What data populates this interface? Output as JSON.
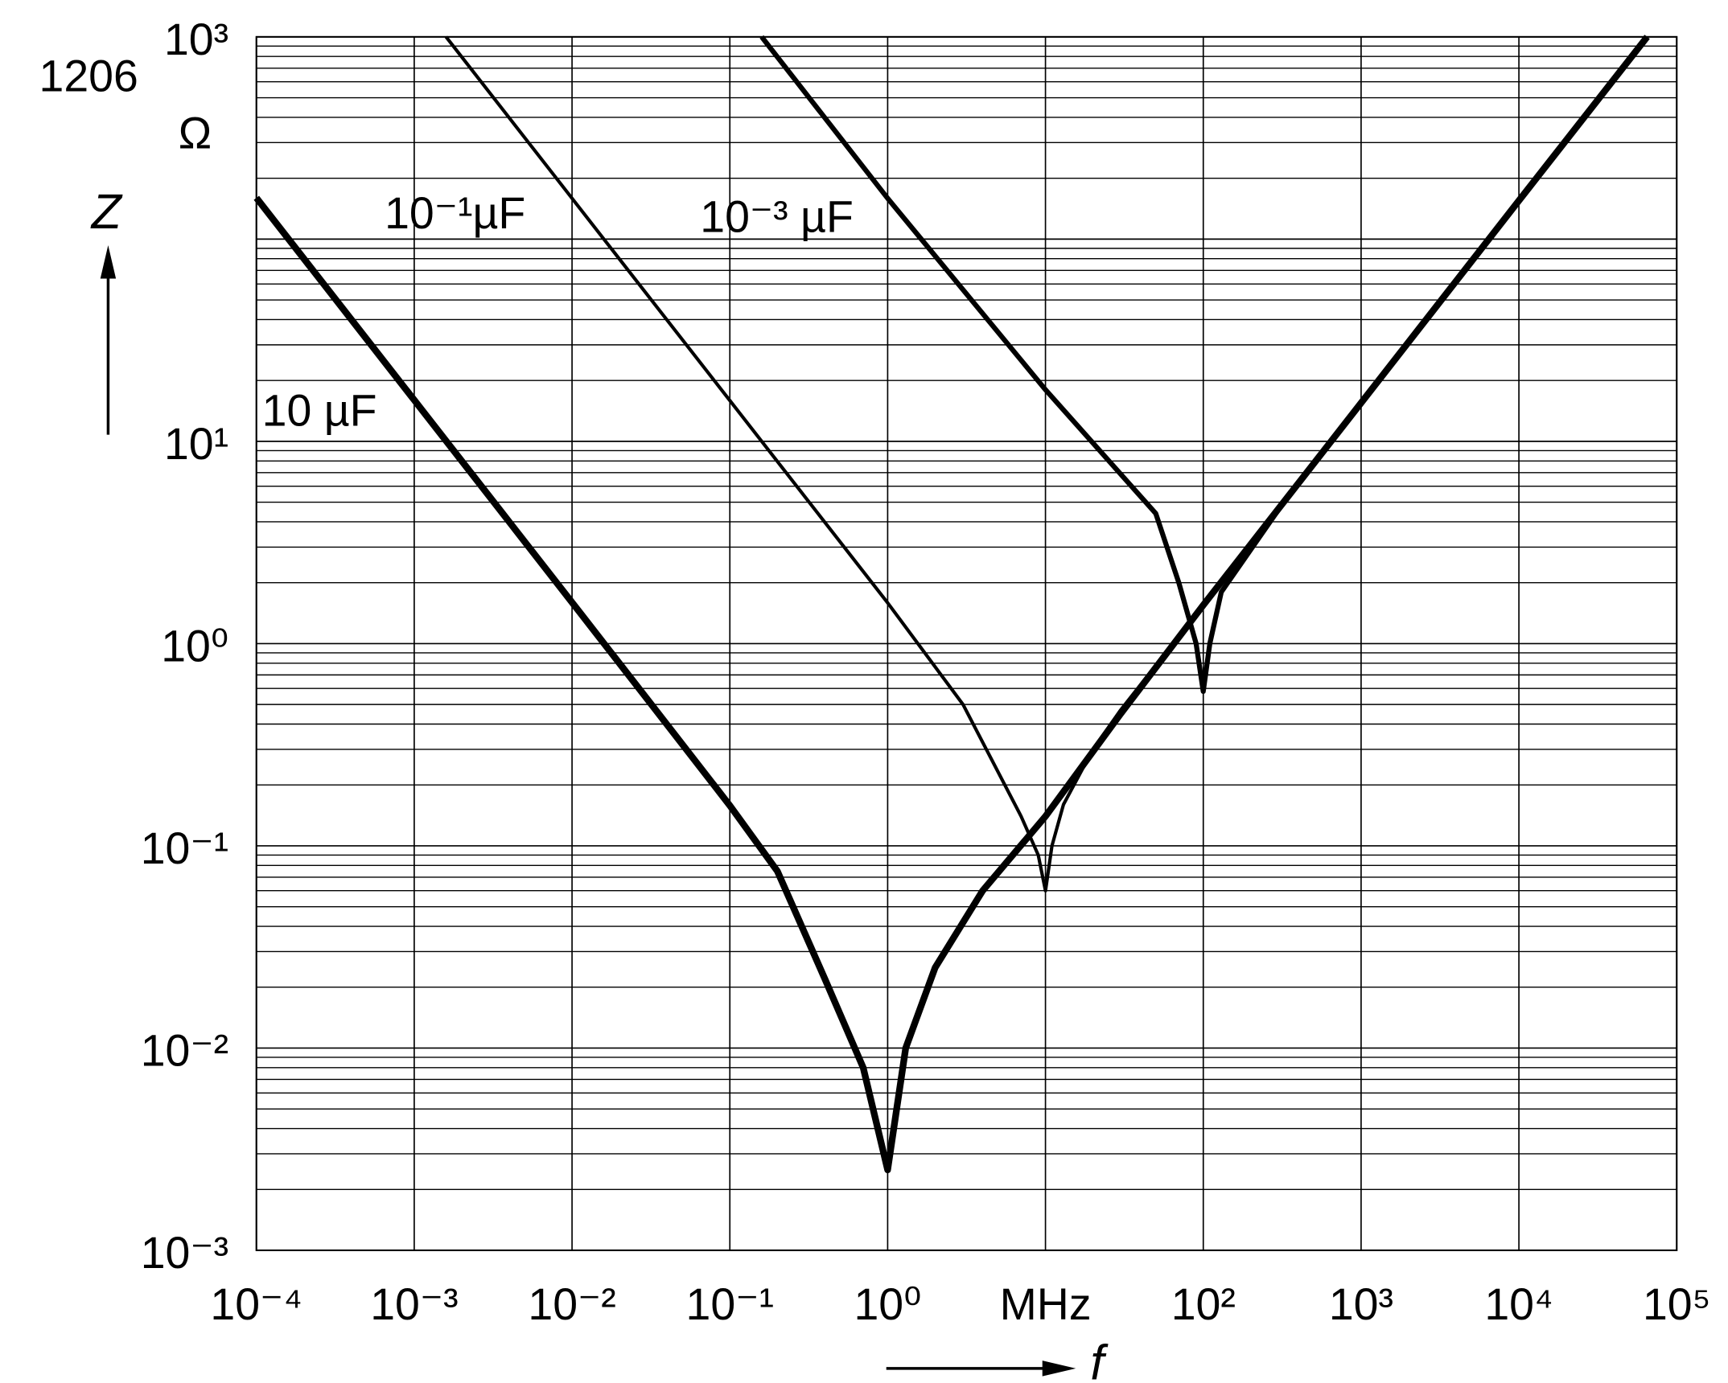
{
  "chart_data": {
    "type": "line",
    "title": "1206",
    "y_unit": "Ω",
    "y_label": "Z",
    "x_label": "f",
    "log_x": true,
    "log_y": true,
    "grid": true,
    "minor_grid_y": true,
    "xlim": [
      0.0001,
      100000
    ],
    "ylim": [
      0.001,
      1000
    ],
    "xticks": [
      {
        "value": 0.0001,
        "label": "10⁻⁴"
      },
      {
        "value": 0.001,
        "label": "10⁻³"
      },
      {
        "value": 0.01,
        "label": "10⁻²"
      },
      {
        "value": 0.1,
        "label": "10⁻¹"
      },
      {
        "value": 1,
        "label": "10⁰"
      },
      {
        "value": 10,
        "label": "MHz"
      },
      {
        "value": 100,
        "label": "10²"
      },
      {
        "value": 1000,
        "label": "10³"
      },
      {
        "value": 10000,
        "label": "10⁴"
      },
      {
        "value": 100000,
        "label": "10⁵"
      }
    ],
    "yticks": [
      {
        "value": 0.001,
        "label": "10⁻³"
      },
      {
        "value": 0.01,
        "label": "10⁻²"
      },
      {
        "value": 0.1,
        "label": "10⁻¹"
      },
      {
        "value": 1,
        "label": "10⁰"
      },
      {
        "value": 10,
        "label": "10¹"
      },
      {
        "value": 100,
        "label": null
      },
      {
        "value": 1000,
        "label": "10³"
      }
    ],
    "series": [
      {
        "name": "10 µF",
        "color": "#000000",
        "width": 6,
        "x": [
          0.0001,
          0.001,
          0.01,
          0.03,
          0.1,
          0.2,
          0.4,
          0.7,
          1,
          1.3,
          2,
          4,
          10,
          30,
          100,
          1000,
          10000,
          65000
        ],
        "values": [
          160,
          16,
          1.6,
          0.53,
          0.158,
          0.075,
          0.022,
          0.008,
          0.0025,
          0.01,
          0.025,
          0.06,
          0.14,
          0.45,
          1.55,
          15.5,
          155,
          1000
        ]
      },
      {
        "name": "10⁻¹µF",
        "color": "#000000",
        "width": 3,
        "x": [
          0.00159,
          0.01,
          0.1,
          1,
          3,
          7,
          9,
          10,
          11,
          13,
          20,
          30,
          100,
          1000,
          10000,
          65000
        ],
        "values": [
          1000,
          159,
          15.9,
          1.59,
          0.5,
          0.14,
          0.09,
          0.06,
          0.1,
          0.16,
          0.3,
          0.47,
          1.55,
          15.5,
          155,
          1000
        ]
      },
      {
        "name": "10⁻³ µF",
        "color": "#000000",
        "width": 4.5,
        "x": [
          0.159,
          1,
          10,
          50,
          70,
          90,
          100,
          110,
          130,
          300,
          1000,
          10000,
          65000
        ],
        "values": [
          1000,
          159,
          18,
          4.4,
          2,
          1,
          0.58,
          1,
          1.8,
          4.6,
          15.5,
          155,
          1000
        ]
      }
    ]
  }
}
